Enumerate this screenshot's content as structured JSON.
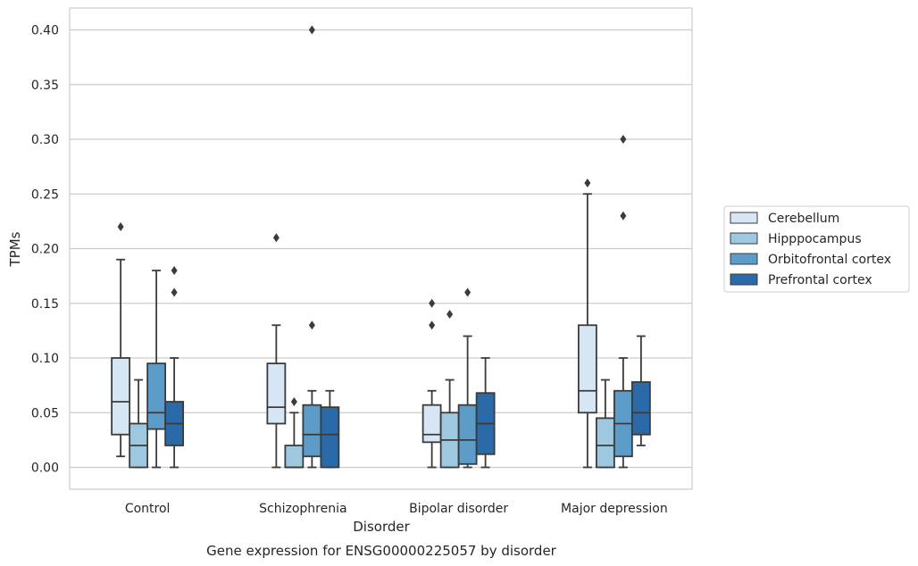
{
  "chart_data": {
    "type": "box",
    "caption": "Gene expression for ENSG00000225057 by disorder",
    "xlabel": "Disorder",
    "ylabel": "TPMs",
    "ylim": [
      -0.02,
      0.42
    ],
    "yticks": [
      0.0,
      0.05,
      0.1,
      0.15,
      0.2,
      0.25,
      0.3,
      0.35,
      0.4
    ],
    "ytick_labels": [
      "0.00",
      "0.05",
      "0.10",
      "0.15",
      "0.20",
      "0.25",
      "0.30",
      "0.35",
      "0.40"
    ],
    "grid": "horizontal",
    "legend_position": "right",
    "categories": [
      "Control",
      "Schizophrenia",
      "Bipolar disorder",
      "Major depression"
    ],
    "series": [
      {
        "name": "Cerebellum",
        "color": "#d7e6f5",
        "boxes": [
          {
            "q1": 0.03,
            "median": 0.06,
            "q3": 0.1,
            "whisker_low": 0.01,
            "whisker_high": 0.19,
            "outliers": [
              0.22
            ]
          },
          {
            "q1": 0.04,
            "median": 0.055,
            "q3": 0.095,
            "whisker_low": 0.0,
            "whisker_high": 0.13,
            "outliers": [
              0.21
            ]
          },
          {
            "q1": 0.023,
            "median": 0.03,
            "q3": 0.057,
            "whisker_low": 0.0,
            "whisker_high": 0.07,
            "outliers": [
              0.13,
              0.15
            ]
          },
          {
            "q1": 0.05,
            "median": 0.07,
            "q3": 0.13,
            "whisker_low": 0.0,
            "whisker_high": 0.25,
            "outliers": [
              0.26
            ]
          }
        ]
      },
      {
        "name": "Hipppocampus",
        "color": "#9dc8e0",
        "boxes": [
          {
            "q1": 0.0,
            "median": 0.02,
            "q3": 0.04,
            "whisker_low": 0.0,
            "whisker_high": 0.08,
            "outliers": []
          },
          {
            "q1": 0.0,
            "median": 0.0,
            "q3": 0.02,
            "whisker_low": 0.0,
            "whisker_high": 0.05,
            "outliers": [
              0.06
            ]
          },
          {
            "q1": 0.0,
            "median": 0.025,
            "q3": 0.05,
            "whisker_low": 0.0,
            "whisker_high": 0.08,
            "outliers": [
              0.14
            ]
          },
          {
            "q1": 0.0,
            "median": 0.02,
            "q3": 0.045,
            "whisker_low": 0.0,
            "whisker_high": 0.08,
            "outliers": []
          }
        ]
      },
      {
        "name": "Orbitofrontal cortex",
        "color": "#5b9cc9",
        "boxes": [
          {
            "q1": 0.035,
            "median": 0.05,
            "q3": 0.095,
            "whisker_low": 0.0,
            "whisker_high": 0.18,
            "outliers": []
          },
          {
            "q1": 0.01,
            "median": 0.03,
            "q3": 0.057,
            "whisker_low": 0.0,
            "whisker_high": 0.07,
            "outliers": [
              0.13,
              0.4
            ]
          },
          {
            "q1": 0.003,
            "median": 0.025,
            "q3": 0.057,
            "whisker_low": 0.0,
            "whisker_high": 0.12,
            "outliers": [
              0.16
            ]
          },
          {
            "q1": 0.01,
            "median": 0.04,
            "q3": 0.07,
            "whisker_low": 0.0,
            "whisker_high": 0.1,
            "outliers": [
              0.23,
              0.3
            ]
          }
        ]
      },
      {
        "name": "Prefrontal cortex",
        "color": "#2b6aa8",
        "boxes": [
          {
            "q1": 0.02,
            "median": 0.04,
            "q3": 0.06,
            "whisker_low": 0.0,
            "whisker_high": 0.1,
            "outliers": [
              0.16,
              0.18
            ]
          },
          {
            "q1": 0.0,
            "median": 0.03,
            "q3": 0.055,
            "whisker_low": 0.0,
            "whisker_high": 0.07,
            "outliers": []
          },
          {
            "q1": 0.012,
            "median": 0.04,
            "q3": 0.068,
            "whisker_low": 0.0,
            "whisker_high": 0.1,
            "outliers": []
          },
          {
            "q1": 0.03,
            "median": 0.05,
            "q3": 0.078,
            "whisker_low": 0.02,
            "whisker_high": 0.12,
            "outliers": []
          }
        ]
      }
    ]
  }
}
